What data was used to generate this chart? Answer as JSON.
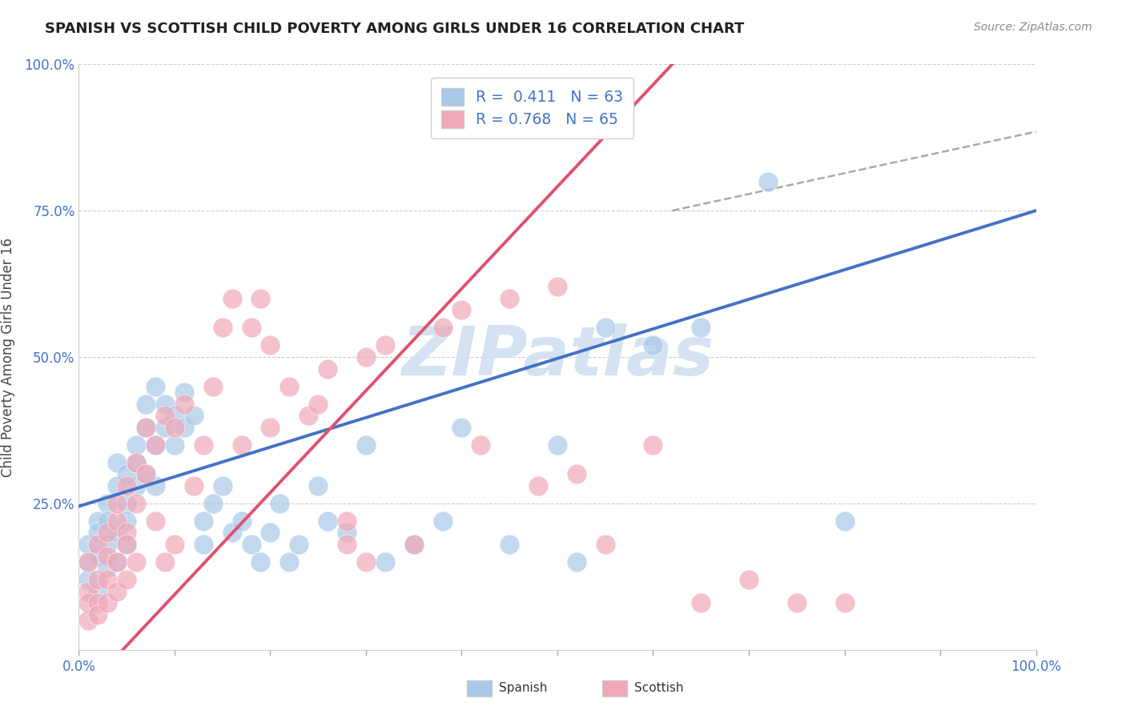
{
  "title": "SPANISH VS SCOTTISH CHILD POVERTY AMONG GIRLS UNDER 16 CORRELATION CHART",
  "source": "Source: ZipAtlas.com",
  "ylabel": "Child Poverty Among Girls Under 16",
  "xlim": [
    0.0,
    1.0
  ],
  "ylim": [
    0.0,
    1.0
  ],
  "spanish_R": "0.411",
  "spanish_N": "63",
  "scottish_R": "0.768",
  "scottish_N": "65",
  "spanish_color": "#a8c8e8",
  "scottish_color": "#f0a8b8",
  "spanish_line_color": "#4472c4",
  "scottish_line_color": "#e05070",
  "watermark_text": "ZIPatlas",
  "watermark_color": "#d0dff0",
  "background_color": "#ffffff",
  "label_color": "#4472c4",
  "spanish_line": [
    0.0,
    0.245,
    1.0,
    0.75
  ],
  "scottish_line": [
    0.0,
    -0.08,
    0.62,
    1.0
  ],
  "dashed_line": [
    0.62,
    0.75,
    1.0,
    0.885
  ],
  "spanish_points": [
    [
      0.01,
      0.15
    ],
    [
      0.01,
      0.18
    ],
    [
      0.01,
      0.12
    ],
    [
      0.02,
      0.16
    ],
    [
      0.02,
      0.22
    ],
    [
      0.02,
      0.1
    ],
    [
      0.02,
      0.2
    ],
    [
      0.03,
      0.18
    ],
    [
      0.03,
      0.25
    ],
    [
      0.03,
      0.14
    ],
    [
      0.03,
      0.22
    ],
    [
      0.04,
      0.28
    ],
    [
      0.04,
      0.2
    ],
    [
      0.04,
      0.15
    ],
    [
      0.04,
      0.32
    ],
    [
      0.05,
      0.25
    ],
    [
      0.05,
      0.3
    ],
    [
      0.05,
      0.22
    ],
    [
      0.05,
      0.18
    ],
    [
      0.06,
      0.32
    ],
    [
      0.06,
      0.28
    ],
    [
      0.06,
      0.35
    ],
    [
      0.07,
      0.38
    ],
    [
      0.07,
      0.3
    ],
    [
      0.07,
      0.42
    ],
    [
      0.08,
      0.35
    ],
    [
      0.08,
      0.45
    ],
    [
      0.08,
      0.28
    ],
    [
      0.09,
      0.38
    ],
    [
      0.09,
      0.42
    ],
    [
      0.1,
      0.4
    ],
    [
      0.1,
      0.35
    ],
    [
      0.11,
      0.44
    ],
    [
      0.11,
      0.38
    ],
    [
      0.12,
      0.4
    ],
    [
      0.13,
      0.22
    ],
    [
      0.13,
      0.18
    ],
    [
      0.14,
      0.25
    ],
    [
      0.15,
      0.28
    ],
    [
      0.16,
      0.2
    ],
    [
      0.17,
      0.22
    ],
    [
      0.18,
      0.18
    ],
    [
      0.19,
      0.15
    ],
    [
      0.2,
      0.2
    ],
    [
      0.21,
      0.25
    ],
    [
      0.22,
      0.15
    ],
    [
      0.23,
      0.18
    ],
    [
      0.25,
      0.28
    ],
    [
      0.26,
      0.22
    ],
    [
      0.28,
      0.2
    ],
    [
      0.3,
      0.35
    ],
    [
      0.32,
      0.15
    ],
    [
      0.35,
      0.18
    ],
    [
      0.38,
      0.22
    ],
    [
      0.4,
      0.38
    ],
    [
      0.45,
      0.18
    ],
    [
      0.5,
      0.35
    ],
    [
      0.52,
      0.15
    ],
    [
      0.55,
      0.55
    ],
    [
      0.6,
      0.52
    ],
    [
      0.65,
      0.55
    ],
    [
      0.72,
      0.8
    ],
    [
      0.8,
      0.22
    ]
  ],
  "scottish_points": [
    [
      0.01,
      0.05
    ],
    [
      0.01,
      0.1
    ],
    [
      0.01,
      0.08
    ],
    [
      0.01,
      0.15
    ],
    [
      0.02,
      0.08
    ],
    [
      0.02,
      0.12
    ],
    [
      0.02,
      0.06
    ],
    [
      0.02,
      0.18
    ],
    [
      0.03,
      0.12
    ],
    [
      0.03,
      0.16
    ],
    [
      0.03,
      0.08
    ],
    [
      0.03,
      0.2
    ],
    [
      0.04,
      0.15
    ],
    [
      0.04,
      0.22
    ],
    [
      0.04,
      0.1
    ],
    [
      0.04,
      0.25
    ],
    [
      0.05,
      0.2
    ],
    [
      0.05,
      0.28
    ],
    [
      0.05,
      0.12
    ],
    [
      0.05,
      0.18
    ],
    [
      0.06,
      0.25
    ],
    [
      0.06,
      0.32
    ],
    [
      0.06,
      0.15
    ],
    [
      0.07,
      0.3
    ],
    [
      0.07,
      0.38
    ],
    [
      0.08,
      0.35
    ],
    [
      0.08,
      0.22
    ],
    [
      0.09,
      0.4
    ],
    [
      0.09,
      0.15
    ],
    [
      0.1,
      0.18
    ],
    [
      0.1,
      0.38
    ],
    [
      0.11,
      0.42
    ],
    [
      0.12,
      0.28
    ],
    [
      0.13,
      0.35
    ],
    [
      0.14,
      0.45
    ],
    [
      0.15,
      0.55
    ],
    [
      0.16,
      0.6
    ],
    [
      0.17,
      0.35
    ],
    [
      0.18,
      0.55
    ],
    [
      0.19,
      0.6
    ],
    [
      0.2,
      0.38
    ],
    [
      0.2,
      0.52
    ],
    [
      0.22,
      0.45
    ],
    [
      0.24,
      0.4
    ],
    [
      0.25,
      0.42
    ],
    [
      0.26,
      0.48
    ],
    [
      0.28,
      0.18
    ],
    [
      0.28,
      0.22
    ],
    [
      0.3,
      0.5
    ],
    [
      0.3,
      0.15
    ],
    [
      0.32,
      0.52
    ],
    [
      0.35,
      0.18
    ],
    [
      0.38,
      0.55
    ],
    [
      0.4,
      0.58
    ],
    [
      0.42,
      0.35
    ],
    [
      0.45,
      0.6
    ],
    [
      0.48,
      0.28
    ],
    [
      0.5,
      0.62
    ],
    [
      0.52,
      0.3
    ],
    [
      0.55,
      0.18
    ],
    [
      0.6,
      0.35
    ],
    [
      0.65,
      0.08
    ],
    [
      0.7,
      0.12
    ],
    [
      0.75,
      0.08
    ],
    [
      0.8,
      0.08
    ]
  ]
}
